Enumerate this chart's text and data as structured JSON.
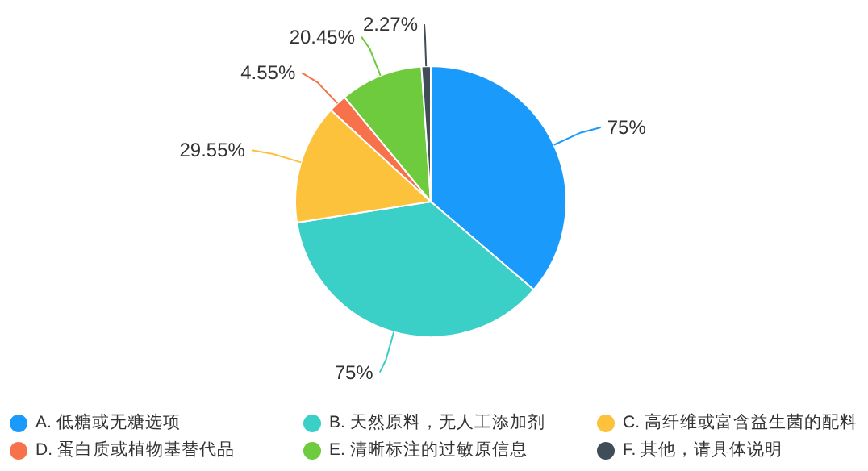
{
  "chart_data": {
    "type": "pie",
    "categories": [
      "A. 低糖或无糖选项",
      "B. 天然原料，无人工添加剂",
      "C. 高纤维或富含益生菌的配料",
      "D. 蛋白质或植物基替代品",
      "E. 清晰标注的过敏原信息",
      "F. 其他，请具体说明"
    ],
    "values": [
      75,
      75,
      29.55,
      4.55,
      20.45,
      2.27
    ],
    "value_labels": [
      "75%",
      "75%",
      "29.55%",
      "4.55%",
      "20.45%",
      "2.27%"
    ],
    "colors": [
      "#1a9bfc",
      "#3acfc7",
      "#fcc23c",
      "#f7714a",
      "#6dcb3d",
      "#3f4d58"
    ],
    "legend": "bottom"
  }
}
